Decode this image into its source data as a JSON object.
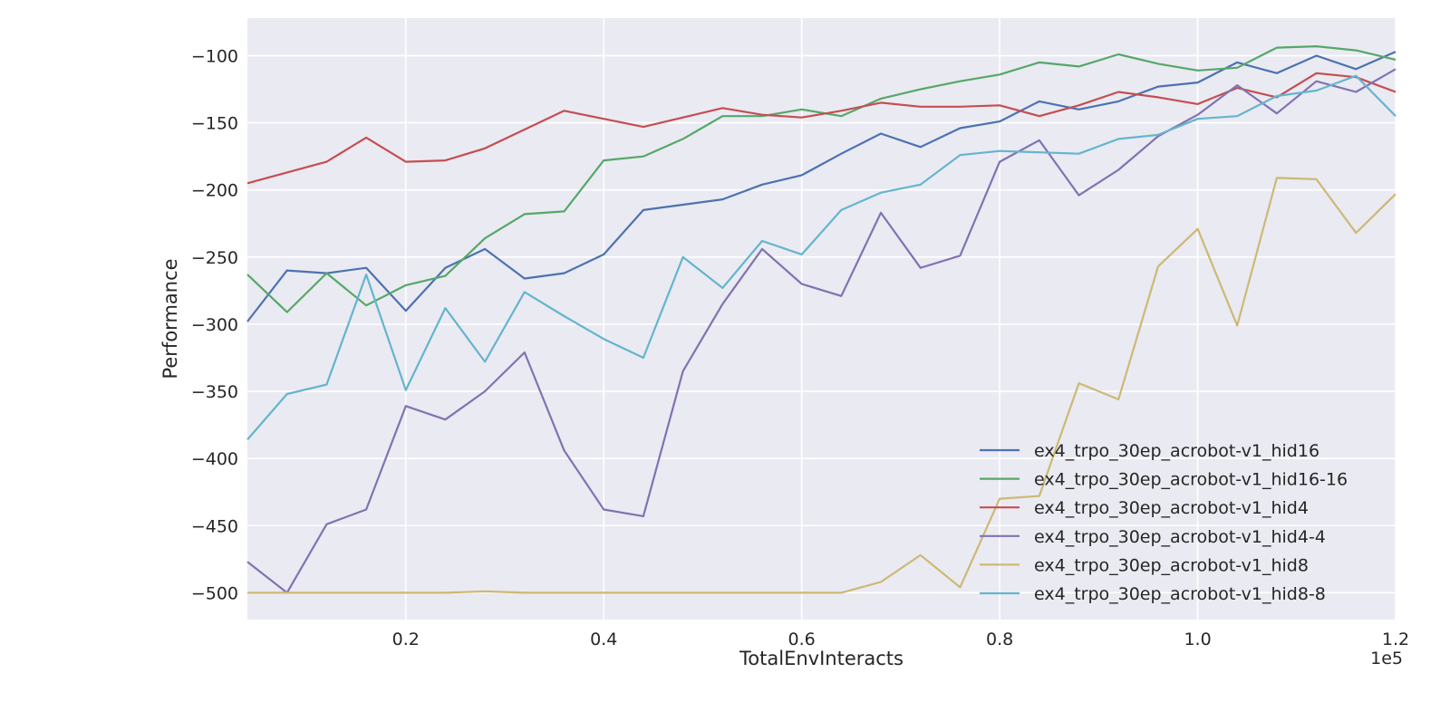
{
  "chart_data": {
    "type": "line",
    "title": "",
    "xlabel": "TotalEnvInteracts",
    "ylabel": "Performance",
    "x_offset_label": "1e5",
    "xlim": [
      4000,
      120000
    ],
    "ylim": [
      -520,
      -72
    ],
    "x_ticks": [
      20000,
      40000,
      60000,
      80000,
      100000,
      120000
    ],
    "x_tick_labels": [
      "0.2",
      "0.4",
      "0.6",
      "0.8",
      "1.0",
      "1.2"
    ],
    "y_ticks": [
      -500,
      -450,
      -400,
      -350,
      -300,
      -250,
      -200,
      -150,
      -100
    ],
    "y_tick_labels": [
      "−500",
      "−450",
      "−400",
      "−350",
      "−300",
      "−250",
      "−200",
      "−150",
      "−100"
    ],
    "grid": true,
    "legend_position": "bottom-right",
    "x": [
      4000,
      8000,
      12000,
      16000,
      20000,
      24000,
      28000,
      32000,
      36000,
      40000,
      44000,
      48000,
      52000,
      56000,
      60000,
      64000,
      68000,
      72000,
      76000,
      80000,
      84000,
      88000,
      92000,
      96000,
      100000,
      104000,
      108000,
      112000,
      116000,
      120000
    ],
    "series": [
      {
        "name": "ex4_trpo_30ep_acrobot-v1_hid16",
        "color": "#4c72b0",
        "values": [
          -298,
          -260,
          -262,
          -258,
          -290,
          -258,
          -244,
          -266,
          -262,
          -248,
          -215,
          -211,
          -207,
          -196,
          -189,
          -173,
          -158,
          -168,
          -154,
          -149,
          -134,
          -140,
          -134,
          -123,
          -120,
          -105,
          -113,
          -100,
          -110,
          -97
        ]
      },
      {
        "name": "ex4_trpo_30ep_acrobot-v1_hid16-16",
        "color": "#55a868",
        "values": [
          -263,
          -291,
          -262,
          -286,
          -271,
          -264,
          -236,
          -218,
          -216,
          -178,
          -175,
          -162,
          -145,
          -145,
          -140,
          -145,
          -132,
          -125,
          -119,
          -114,
          -105,
          -108,
          -99,
          -106,
          -111,
          -109,
          -94,
          -93,
          -96,
          -103
        ]
      },
      {
        "name": "ex4_trpo_30ep_acrobot-v1_hid4",
        "color": "#c44e52",
        "values": [
          -195,
          -187,
          -179,
          -161,
          -179,
          -178,
          -169,
          -155,
          -141,
          -147,
          -153,
          -146,
          -139,
          -144,
          -146,
          -141,
          -135,
          -138,
          -138,
          -137,
          -145,
          -137,
          -127,
          -131,
          -136,
          -124,
          -131,
          -113,
          -116,
          -127
        ]
      },
      {
        "name": "ex4_trpo_30ep_acrobot-v1_hid4-4",
        "color": "#8172b2",
        "values": [
          -477,
          -500,
          -449,
          -438,
          -361,
          -371,
          -350,
          -321,
          -394,
          -438,
          -443,
          -335,
          -285,
          -244,
          -270,
          -279,
          -217,
          -258,
          -249,
          -179,
          -163,
          -204,
          -185,
          -160,
          -144,
          -122,
          -143,
          -119,
          -127,
          -110
        ]
      },
      {
        "name": "ex4_trpo_30ep_acrobot-v1_hid8",
        "color": "#ccb974",
        "values": [
          -500,
          -500,
          -500,
          -500,
          -500,
          -500,
          -499,
          -500,
          -500,
          -500,
          -500,
          -500,
          -500,
          -500,
          -500,
          -500,
          -492,
          -472,
          -496,
          -430,
          -428,
          -344,
          -356,
          -257,
          -229,
          -301,
          -191,
          -192,
          -232,
          -203
        ]
      },
      {
        "name": "ex4_trpo_30ep_acrobot-v1_hid8-8",
        "color": "#64b5cd",
        "values": [
          -386,
          -352,
          -345,
          -263,
          -349,
          -288,
          -328,
          -276,
          -294,
          -311,
          -325,
          -250,
          -273,
          -238,
          -248,
          -215,
          -202,
          -196,
          -174,
          -171,
          -172,
          -173,
          -162,
          -159,
          -147,
          -145,
          -130,
          -126,
          -115,
          -145
        ]
      }
    ]
  }
}
